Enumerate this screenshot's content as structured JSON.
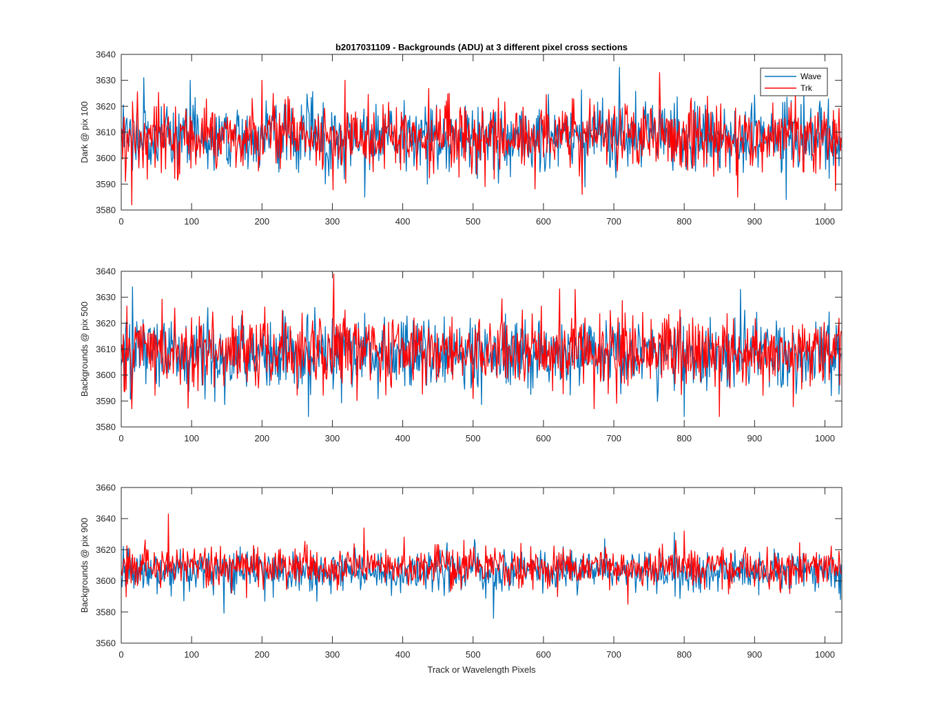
{
  "title": "b2017031109 - Backgrounds (ADU) at 3 different pixel cross sections",
  "xlabel": "Track or Wavelength Pixels",
  "legend": [
    {
      "name": "Wave",
      "color": "#0072bd"
    },
    {
      "name": "Trk",
      "color": "#ff0000"
    }
  ],
  "chart_data": [
    {
      "type": "line",
      "ylabel": "Dark @ pix 100",
      "xlim": [
        0,
        1024
      ],
      "ylim": [
        3580,
        3640
      ],
      "xticks": [
        0,
        100,
        200,
        300,
        400,
        500,
        600,
        700,
        800,
        900,
        1000
      ],
      "yticks": [
        3580,
        3590,
        3600,
        3610,
        3620,
        3630,
        3640
      ],
      "series": [
        {
          "name": "Wave",
          "color": "#0072bd",
          "n_points": 1024,
          "mean": 3608,
          "noise_sd": 6.5,
          "min": 3584,
          "max": 3635,
          "peaks": [
            [
              32,
              3631
            ],
            [
              708,
              3635
            ],
            [
              98,
              3630
            ],
            [
              945,
              3584
            ],
            [
              346,
              3585
            ]
          ]
        },
        {
          "name": "Trk",
          "color": "#ff0000",
          "n_points": 1024,
          "mean": 3608,
          "noise_sd": 6.5,
          "min": 3582,
          "max": 3633,
          "peaks": [
            [
              15,
              3582
            ],
            [
              765,
              3633
            ],
            [
              200,
              3630
            ],
            [
              318,
              3630
            ],
            [
              655,
              3586
            ],
            [
              876,
              3585
            ]
          ]
        }
      ]
    },
    {
      "type": "line",
      "ylabel": "Backgrounds @ pix 500",
      "xlim": [
        0,
        1024
      ],
      "ylim": [
        3580,
        3640
      ],
      "xticks": [
        0,
        100,
        200,
        300,
        400,
        500,
        600,
        700,
        800,
        900,
        1000
      ],
      "yticks": [
        3580,
        3590,
        3600,
        3610,
        3620,
        3630,
        3640
      ],
      "series": [
        {
          "name": "Wave",
          "color": "#0072bd",
          "n_points": 1024,
          "mean": 3608,
          "noise_sd": 7,
          "min": 3584,
          "max": 3634,
          "peaks": [
            [
              16,
              3634
            ],
            [
              266,
              3584
            ],
            [
              800,
              3584
            ],
            [
              880,
              3633
            ]
          ]
        },
        {
          "name": "Trk",
          "color": "#ff0000",
          "n_points": 1024,
          "mean": 3609,
          "noise_sd": 7,
          "min": 3584,
          "max": 3639,
          "peaks": [
            [
              302,
              3639
            ],
            [
              645,
              3633
            ],
            [
              850,
              3584
            ],
            [
              15,
              3587
            ]
          ]
        }
      ]
    },
    {
      "type": "line",
      "ylabel": "Backgrounds @ pix 900",
      "xlim": [
        0,
        1024
      ],
      "ylim": [
        3560,
        3660
      ],
      "xticks": [
        0,
        100,
        200,
        300,
        400,
        500,
        600,
        700,
        800,
        900,
        1000
      ],
      "yticks": [
        3560,
        3580,
        3600,
        3620,
        3640,
        3660
      ],
      "series": [
        {
          "name": "Wave",
          "color": "#0072bd",
          "n_points": 1024,
          "mean": 3606,
          "noise_sd": 6.5,
          "min": 3576,
          "max": 3631,
          "peaks": [
            [
              529,
              3576
            ],
            [
              786,
              3631
            ],
            [
              1022,
              3588
            ]
          ]
        },
        {
          "name": "Trk",
          "color": "#ff0000",
          "n_points": 1024,
          "mean": 3609,
          "noise_sd": 6.5,
          "min": 3585,
          "max": 3643,
          "peaks": [
            [
              67,
              3643
            ],
            [
              345,
              3634
            ],
            [
              720,
              3585
            ],
            [
              800,
              3632
            ]
          ]
        }
      ]
    }
  ]
}
